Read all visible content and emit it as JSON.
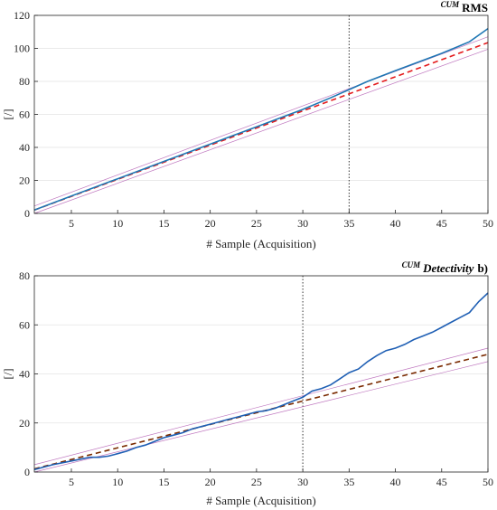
{
  "chart_data": [
    {
      "type": "line",
      "title_prefix": "CUM",
      "title": "RMS",
      "title_suffix": "",
      "xlabel": "# Sample (Acquisition)",
      "ylabel": "[/]",
      "xlim": [
        1,
        50
      ],
      "ylim": [
        0,
        120
      ],
      "xticks": [
        5,
        10,
        15,
        20,
        25,
        30,
        35,
        40,
        45,
        50
      ],
      "yticks": [
        0,
        20,
        40,
        60,
        80,
        100,
        120
      ],
      "grid": "horizontal",
      "vline_x": 35,
      "series": [
        {
          "role": "upper-bound",
          "color": "#b45fb4",
          "style": "thin",
          "x": [
            1,
            50
          ],
          "y": [
            4.5,
            107
          ]
        },
        {
          "role": "lower-bound",
          "color": "#b45fb4",
          "style": "thin",
          "x": [
            1,
            50
          ],
          "y": [
            0,
            99.5
          ]
        },
        {
          "role": "trend",
          "color": "#e41a1c",
          "style": "dashed",
          "x": [
            1,
            50
          ],
          "y": [
            2,
            103.5
          ]
        },
        {
          "role": "measured",
          "color": "#1f77b4",
          "style": "solid",
          "x": [
            1,
            5,
            10,
            15,
            20,
            25,
            30,
            33,
            35,
            37,
            40,
            45,
            48,
            50
          ],
          "y": [
            2,
            10.5,
            21,
            31.5,
            42,
            52.5,
            63,
            70,
            75,
            80,
            86.5,
            97,
            104,
            112
          ]
        }
      ]
    },
    {
      "type": "line",
      "title_prefix": "CUM",
      "title": "Detectivity",
      "title_suffix": "b)",
      "xlabel": "# Sample (Acquisition)",
      "ylabel": "[/]",
      "xlim": [
        1,
        50
      ],
      "ylim": [
        0,
        80
      ],
      "xticks": [
        5,
        10,
        15,
        20,
        25,
        30,
        35,
        40,
        45,
        50
      ],
      "yticks": [
        0,
        20,
        40,
        60,
        80
      ],
      "grid": "horizontal",
      "vline_x": 30,
      "series": [
        {
          "role": "upper-bound",
          "color": "#b45fb4",
          "style": "thin",
          "x": [
            1,
            50
          ],
          "y": [
            3,
            50.5
          ]
        },
        {
          "role": "lower-bound",
          "color": "#b45fb4",
          "style": "thin",
          "x": [
            1,
            50
          ],
          "y": [
            0,
            45
          ]
        },
        {
          "role": "trend",
          "color": "#7a2a00",
          "style": "dashed",
          "x": [
            1,
            50
          ],
          "y": [
            1.3,
            48
          ]
        },
        {
          "role": "measured",
          "color": "#1f5fb4",
          "style": "solid",
          "x": [
            1,
            3,
            5,
            7,
            8,
            9,
            10,
            11,
            12,
            13,
            14,
            15,
            16,
            17,
            18,
            19,
            20,
            21,
            22,
            23,
            24,
            25,
            26,
            27,
            28,
            29,
            30,
            31,
            32,
            33,
            34,
            35,
            36,
            37,
            38,
            39,
            40,
            41,
            42,
            43,
            44,
            45,
            46,
            47,
            48,
            49,
            50
          ],
          "y": [
            1,
            3,
            4.5,
            6,
            6,
            6.5,
            7.5,
            8.5,
            10,
            11,
            12.5,
            14,
            15,
            16,
            17.5,
            18.5,
            19.5,
            20.5,
            21.5,
            22.5,
            23.5,
            24.5,
            25,
            26,
            27.5,
            29,
            30.5,
            33,
            34,
            35.5,
            38,
            40.5,
            42,
            45,
            47.5,
            49.5,
            50.5,
            52,
            54,
            55.5,
            57,
            59,
            61,
            63,
            65,
            69.5,
            73
          ]
        }
      ]
    }
  ]
}
